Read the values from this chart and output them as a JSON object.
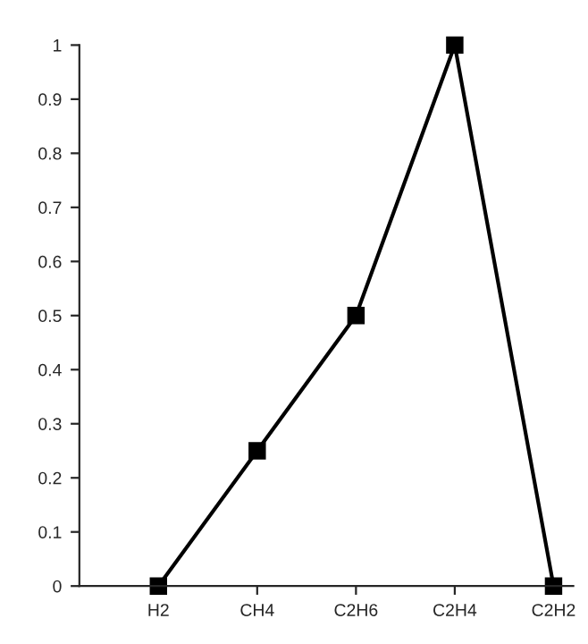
{
  "chart_data": {
    "type": "line",
    "categories": [
      "H2",
      "CH4",
      "C2H6",
      "C2H4",
      "C2H2"
    ],
    "series": [
      {
        "color": "#000000",
        "values": [
          0,
          0.25,
          0.5,
          1,
          0
        ]
      }
    ],
    "ylim": [
      0,
      1
    ],
    "yticks": [
      0,
      0.1,
      0.2,
      0.3,
      0.4,
      0.5,
      0.6,
      0.7,
      0.8,
      0.9,
      1
    ],
    "grid": false,
    "legend": false,
    "marker": "square",
    "line_style": "solid"
  }
}
